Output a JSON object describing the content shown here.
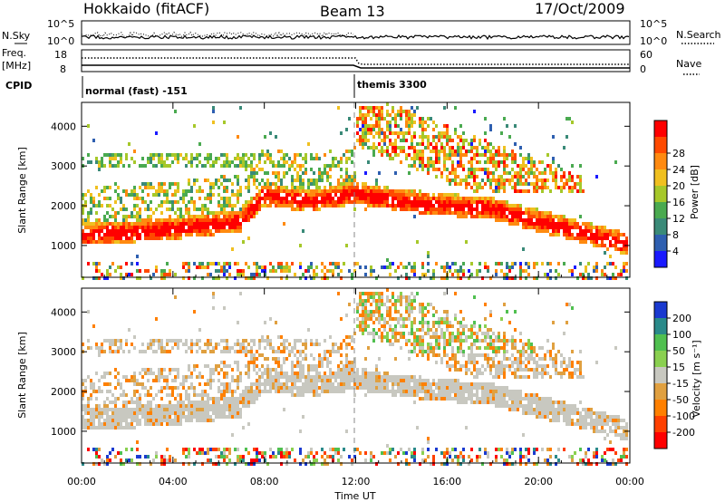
{
  "header": {
    "station": "Hokkaido (fitACF)",
    "beam": "Beam 13",
    "date": "17/Oct/2009"
  },
  "strips": {
    "nsky_label": "N.Sky",
    "nsky_ticks": [
      "10^5",
      "10^0"
    ],
    "nsearch_label": "N.Search",
    "freq_label_line1": "Freq.",
    "freq_label_line2": "[MHz]",
    "freq_ticks": [
      "18",
      "8"
    ],
    "nave_label": "Nave",
    "nave_ticks": [
      "60",
      "0"
    ],
    "cpid_label": "CPID",
    "cpid_modes": [
      {
        "label": "normal (fast) -151",
        "start_hour": 0,
        "end_hour": 12
      },
      {
        "label": "themis 3300",
        "start_hour": 12,
        "end_hour": 24
      }
    ]
  },
  "chart_data": [
    {
      "type": "heatmap",
      "name": "power-panel",
      "xlabel": "Time UT",
      "ylabel": "Slant Range [km]",
      "xlim": [
        0,
        24
      ],
      "ylim": [
        200,
        4600
      ],
      "x_ticks": [
        "00:00",
        "04:00",
        "08:00",
        "12:00",
        "16:00",
        "20:00",
        "00:00"
      ],
      "y_ticks": [
        1000,
        2000,
        3000,
        4000
      ],
      "colorbar": {
        "label": "Power [dB]",
        "ticks": [
          4,
          8,
          12,
          16,
          20,
          24,
          28
        ],
        "range": [
          0,
          32
        ],
        "colors": [
          "#1a1aff",
          "#2e5fb0",
          "#3a8a78",
          "#4aaa50",
          "#a6c82a",
          "#f0c020",
          "#ff8a10",
          "#ff4a00",
          "#ff0000"
        ]
      },
      "echo_bands": [
        {
          "description": "main",
          "range_km_vs_hour": [
            [
              0,
              1150
            ],
            [
              4,
              1300
            ],
            [
              7,
              1500
            ],
            [
              8,
              2150
            ],
            [
              10,
              2000
            ],
            [
              12,
              2200
            ],
            [
              14,
              2000
            ],
            [
              18,
              1800
            ],
            [
              20,
              1500
            ],
            [
              24,
              900
            ]
          ]
        }
      ]
    },
    {
      "type": "heatmap",
      "name": "velocity-panel",
      "xlabel": "Time UT",
      "ylabel": "Slant Range [km]",
      "xlim": [
        0,
        24
      ],
      "ylim": [
        200,
        4600
      ],
      "x_ticks": [
        "00:00",
        "04:00",
        "08:00",
        "12:00",
        "16:00",
        "20:00",
        "00:00"
      ],
      "y_ticks": [
        1000,
        2000,
        3000,
        4000
      ],
      "colorbar": {
        "label": "Velocity [m s⁻¹]",
        "ticks": [
          200,
          100,
          50,
          15,
          -15,
          -50,
          -100,
          -200
        ],
        "colors": [
          "#1a3ad0",
          "#2a8a8a",
          "#50c050",
          "#8ad050",
          "#c8c8c0",
          "#e0a040",
          "#ff8000",
          "#ff4000",
          "#ff0000"
        ]
      }
    }
  ],
  "colors": {
    "ground_scatter": "#c8c8c0",
    "dashed_line": "#888888"
  }
}
